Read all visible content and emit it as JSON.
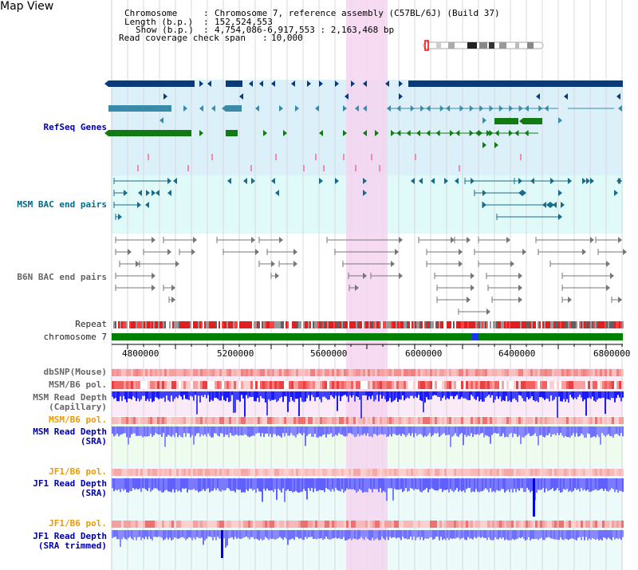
{
  "page": {
    "title": "Map View"
  },
  "header": {
    "chromosome_label": "Chromosome",
    "chromosome_value": "Chromosome 7, reference assembly (C57BL/6J) (Build 37)",
    "length_label": "Length (b.p.)",
    "length_value": "152,524,553",
    "show_label": "Show (b.p.)",
    "show_value": "4,754,086-6,917,553 : 2,163,468 bp",
    "span_label": "Read coverage check span",
    "span_value": "10,000"
  },
  "tracks": {
    "refseq": "RefSeq Genes",
    "msm_bac": "MSM BAC end pairs",
    "b6n_bac": "B6N BAC end pairs",
    "repeat": "Repeat",
    "chromosome": "chromosome 7",
    "dbsnp": "dbSNP(Mouse)",
    "msm_b6_pol_1": "MSM/B6 pol.",
    "msm_read_depth_cap_1": "MSM Read Depth",
    "msm_read_depth_cap_2": "(Capillary)",
    "msm_b6_pol_2": "MSM/B6 pol.",
    "msm_read_depth_sra_1": "MSM Read Depth",
    "msm_read_depth_sra_2": "(SRA)",
    "jf1_b6_pol_1": "JF1/B6 pol.",
    "jf1_read_depth_sra_1": "JF1 Read Depth",
    "jf1_read_depth_sra_2": "(SRA)",
    "jf1_b6_pol_2": "JF1/B6 pol.",
    "jf1_read_depth_trim_1": "JF1 Read Depth",
    "jf1_read_depth_trim_2": "(SRA trimmed)"
  },
  "axis": {
    "ticks": [
      "4800000",
      "5200000",
      "5600000",
      "6000000",
      "6400000",
      "6800000"
    ]
  },
  "colors": {
    "refseq_bg": "#dcf0fa",
    "msm_bac_bg": "#e0fafa",
    "highlight": "#f5d5f0",
    "refseq_dark": "#0a3a7a",
    "refseq_mid": "#3a8aaa",
    "refseq_green": "#127a12",
    "bac_teal": "#1a6a8a",
    "chromosome_green": "#008000",
    "depth_blue": "#0000ff",
    "depth_light": "#8888ff"
  }
}
